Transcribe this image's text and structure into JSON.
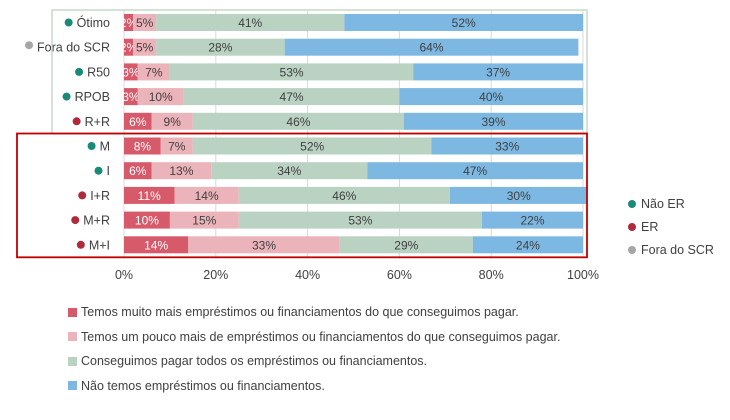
{
  "chart_data": {
    "type": "bar",
    "orientation": "horizontal",
    "stacked": "percent",
    "title": "",
    "xlabel": "",
    "ylabel": "",
    "xlim": [
      0,
      100
    ],
    "x_ticks": [
      "0%",
      "20%",
      "40%",
      "60%",
      "80%",
      "100%"
    ],
    "grid": true,
    "categories": [
      "Ótimo",
      "Fora do SCR",
      "R50",
      "RPOB",
      "R+R",
      "M",
      "I",
      "I+R",
      "M+R",
      "M+I"
    ],
    "category_group": [
      "Não ER",
      "Fora do SCR",
      "Não ER",
      "Não ER",
      "ER",
      "Não ER",
      "Não ER",
      "ER",
      "ER",
      "ER"
    ],
    "series": [
      {
        "name": "Temos muito mais empréstimos ou financiamentos do que conseguimos pagar.",
        "color": "#d75a6b",
        "label_color": "#ffffff",
        "values": [
          2,
          2,
          3,
          3,
          6,
          8,
          6,
          11,
          10,
          14
        ]
      },
      {
        "name": "Temos um pouco mais de empréstimos ou financiamentos do que conseguimos pagar.",
        "color": "#ebb3ba",
        "label_color": "#404040",
        "values": [
          5,
          5,
          7,
          10,
          9,
          7,
          13,
          14,
          15,
          33
        ]
      },
      {
        "name": "Conseguimos pagar todos os empréstimos ou financiamentos.",
        "color": "#b9d2c2",
        "label_color": "#404040",
        "values": [
          41,
          28,
          53,
          47,
          46,
          52,
          34,
          46,
          53,
          29
        ]
      },
      {
        "name": "Não temos empréstimos ou financiamentos.",
        "color": "#7db8e2",
        "label_color": "#404040",
        "values": [
          52,
          64,
          37,
          40,
          39,
          33,
          47,
          30,
          22,
          24
        ]
      }
    ],
    "group_legend": [
      {
        "name": "Não ER",
        "color": "#1a8a78"
      },
      {
        "name": "ER",
        "color": "#b02a3a"
      },
      {
        "name": "Fora do SCR",
        "color": "#a6a6a6"
      }
    ],
    "highlight_boxes": [
      {
        "rows": [
          "Ótimo",
          "Fora do SCR",
          "R50",
          "RPOB",
          "R+R"
        ],
        "color": "#c9d9cc"
      },
      {
        "rows": [
          "M",
          "I",
          "I+R",
          "M+R",
          "M+I"
        ],
        "color": "#c00000"
      }
    ],
    "legend_position": "bottom-left (series), right (groups)"
  }
}
